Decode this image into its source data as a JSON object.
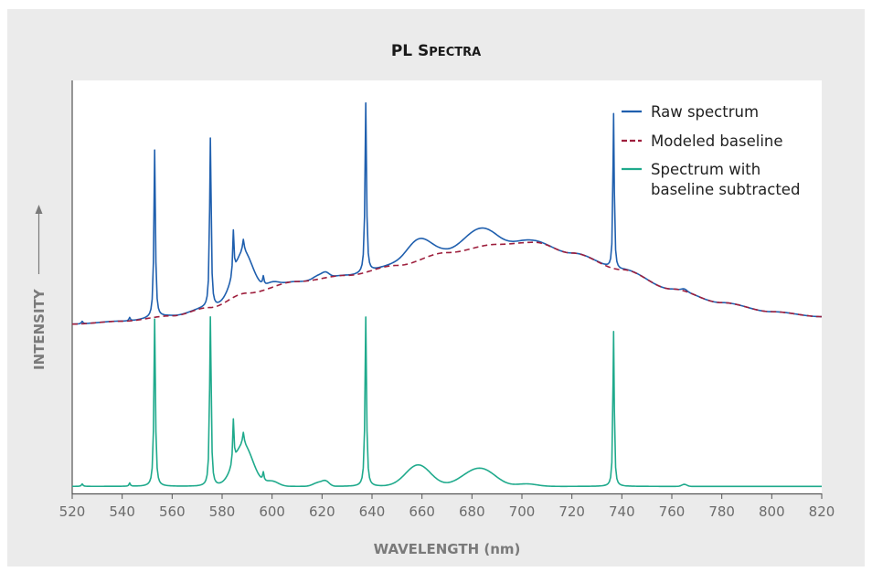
{
  "chart_data": {
    "type": "line",
    "title_main": "PL S",
    "title_smallcaps": "PECTRA",
    "xlabel_main": "WAVELENGTH",
    "xlabel_unit": "(nm)",
    "ylabel": "INTENSITY",
    "xlim": [
      520,
      820
    ],
    "ylim": [
      0,
      100
    ],
    "x_ticks": [
      520,
      540,
      560,
      580,
      600,
      620,
      640,
      660,
      680,
      700,
      720,
      740,
      760,
      780,
      800,
      820
    ],
    "y_ticks_shown": false,
    "grid": false,
    "legend_position": "top-right",
    "sampling": {
      "start": 520,
      "end": 820,
      "step": 0.5
    },
    "baseline_points": [
      [
        520,
        41
      ],
      [
        540,
        41.7
      ],
      [
        560,
        43
      ],
      [
        575,
        45
      ],
      [
        590,
        48.5
      ],
      [
        610,
        51.3
      ],
      [
        630,
        52.8
      ],
      [
        650,
        55.2
      ],
      [
        670,
        58.3
      ],
      [
        690,
        60.3
      ],
      [
        705,
        60.8
      ],
      [
        720,
        58.2
      ],
      [
        740,
        54.2
      ],
      [
        760,
        49.5
      ],
      [
        780,
        46.2
      ],
      [
        800,
        44
      ],
      [
        820,
        42.8
      ]
    ],
    "broad_features": [
      {
        "center": 588.5,
        "width": 3.8,
        "height": 10
      },
      {
        "center": 600,
        "width": 2.5,
        "height": 1.2
      },
      {
        "center": 618.5,
        "width": 2,
        "height": 0.9
      },
      {
        "center": 621.5,
        "width": 1.4,
        "height": 1.1
      },
      {
        "center": 658.5,
        "width": 5,
        "height": 5.2
      },
      {
        "center": 680,
        "width": 5.5,
        "height": 2.8
      },
      {
        "center": 686,
        "width": 5,
        "height": 2.4
      },
      {
        "center": 702,
        "width": 4,
        "height": 0.6
      },
      {
        "center": 765,
        "width": 1,
        "height": 0.5
      }
    ],
    "sharp_peaks": [
      {
        "center": 524,
        "width": 0.35,
        "height": 0.6
      },
      {
        "center": 543,
        "width": 0.3,
        "height": 0.8
      },
      {
        "center": 553,
        "width": 0.35,
        "height": 40.5
      },
      {
        "center": 575.3,
        "width": 0.35,
        "height": 41
      },
      {
        "center": 584.5,
        "width": 0.3,
        "height": 10.5
      },
      {
        "center": 588.5,
        "width": 0.4,
        "height": 3
      },
      {
        "center": 596.5,
        "width": 0.3,
        "height": 2
      },
      {
        "center": 637.5,
        "width": 0.35,
        "height": 41
      },
      {
        "center": 736.7,
        "width": 0.3,
        "height": 37.5
      }
    ],
    "series": [
      {
        "name": "Raw spectrum",
        "color": "#1f5fae",
        "style": "solid"
      },
      {
        "name": "Modeled baseline",
        "color": "#9e1f3d",
        "style": "dashed"
      },
      {
        "name": "Spectrum with baseline subtracted",
        "color": "#1faa8c",
        "style": "solid"
      }
    ],
    "legend": {
      "raw": "Raw spectrum",
      "baseline": "Modeled baseline",
      "subtracted_line1": "Spectrum with",
      "subtracted_line2": "baseline subtracted"
    }
  }
}
